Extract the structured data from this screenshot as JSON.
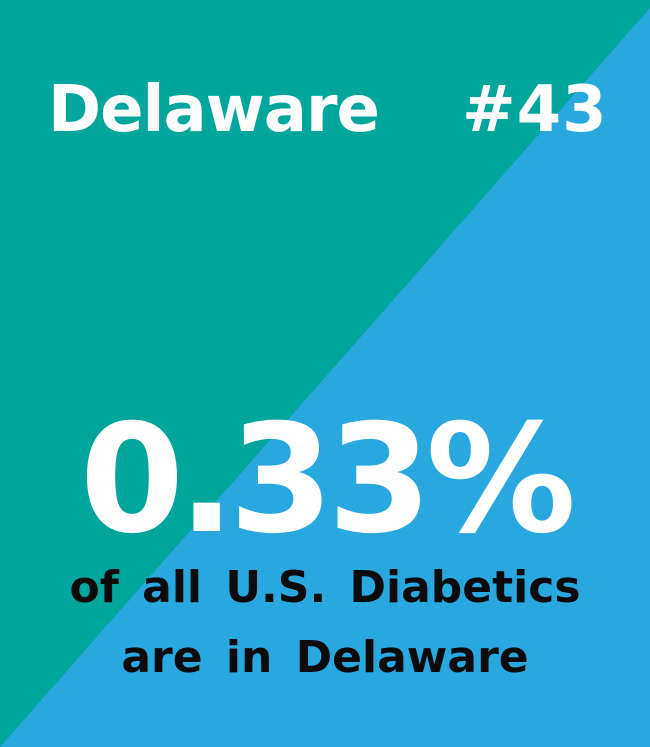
{
  "colors": {
    "top_left_teal": "#00a59b",
    "bottom_right_blue": "#29a8e0",
    "title_text": "#ffffff",
    "caption_text": "#0b0b0b"
  },
  "header": {
    "state": "Delaware",
    "rank": "#43"
  },
  "stat": {
    "value": "0.33%",
    "caption_line1": "of all U.S. Diabetics",
    "caption_line2": "are in Delaware"
  }
}
